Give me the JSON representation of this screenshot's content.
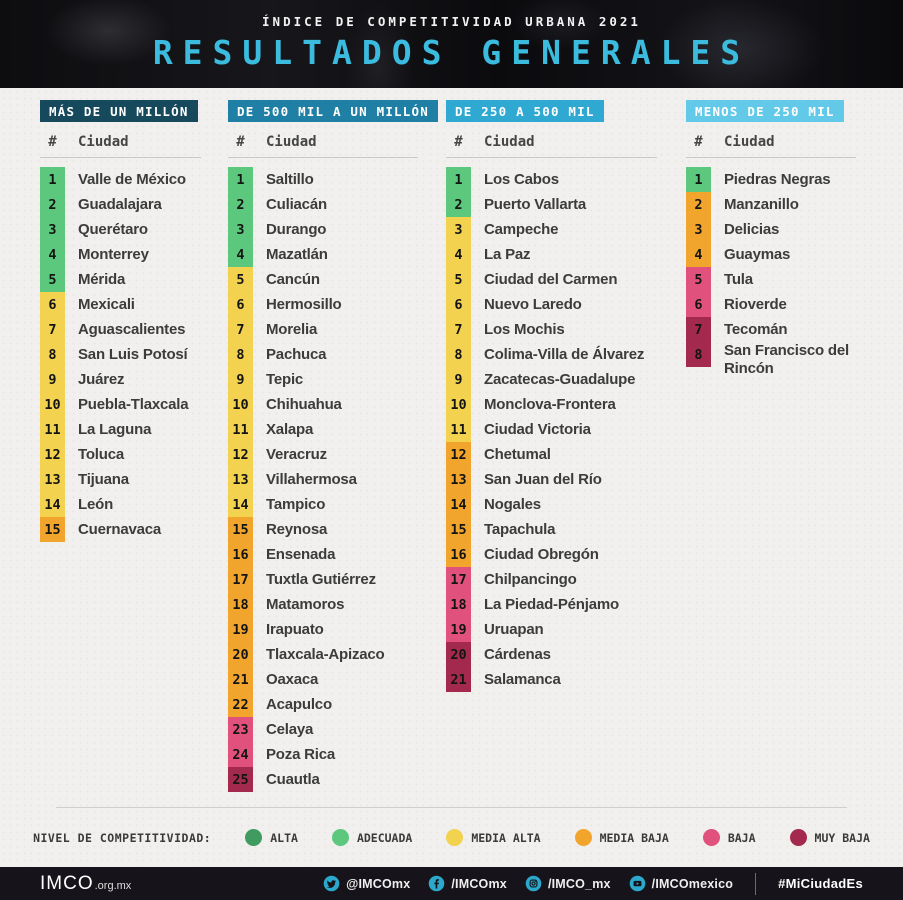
{
  "header": {
    "kicker": "ÍNDICE DE COMPETITIVIDAD URBANA 2021",
    "title": "RESULTADOS GENERALES"
  },
  "list_header": {
    "rank": "#",
    "city": "Ciudad"
  },
  "level_colors": {
    "alta": "#3f9b60",
    "adecuada": "#5bc87e",
    "media_alta": "#f2d24f",
    "media_baja": "#f2a52d",
    "baja": "#e0517e",
    "muy_baja": "#a32a4e"
  },
  "chart_data": {
    "type": "table",
    "title": "Índice de Competitividad Urbana 2021 — Resultados Generales",
    "groups": [
      {
        "label": "MÁS DE UN MILLÓN",
        "header_color": "#17495d",
        "rows": [
          {
            "rank": "1",
            "city": "Valle de México",
            "level": "adecuada"
          },
          {
            "rank": "2",
            "city": "Guadalajara",
            "level": "adecuada"
          },
          {
            "rank": "3",
            "city": "Querétaro",
            "level": "adecuada"
          },
          {
            "rank": "4",
            "city": "Monterrey",
            "level": "adecuada"
          },
          {
            "rank": "5",
            "city": "Mérida",
            "level": "adecuada"
          },
          {
            "rank": "6",
            "city": "Mexicali",
            "level": "media_alta"
          },
          {
            "rank": "7",
            "city": "Aguascalientes",
            "level": "media_alta"
          },
          {
            "rank": "8",
            "city": "San Luis Potosí",
            "level": "media_alta"
          },
          {
            "rank": "9",
            "city": "Juárez",
            "level": "media_alta"
          },
          {
            "rank": "10",
            "city": "Puebla-Tlaxcala",
            "level": "media_alta"
          },
          {
            "rank": "11",
            "city": "La Laguna",
            "level": "media_alta"
          },
          {
            "rank": "12",
            "city": "Toluca",
            "level": "media_alta"
          },
          {
            "rank": "13",
            "city": "Tijuana",
            "level": "media_alta"
          },
          {
            "rank": "14",
            "city": "León",
            "level": "media_alta"
          },
          {
            "rank": "15",
            "city": "Cuernavaca",
            "level": "media_baja"
          }
        ]
      },
      {
        "label": "DE 500 MIL A UN MILLÓN",
        "header_color": "#1f7fa4",
        "rows": [
          {
            "rank": "1",
            "city": "Saltillo",
            "level": "adecuada"
          },
          {
            "rank": "2",
            "city": "Culiacán",
            "level": "adecuada"
          },
          {
            "rank": "3",
            "city": "Durango",
            "level": "adecuada"
          },
          {
            "rank": "4",
            "city": "Mazatlán",
            "level": "adecuada"
          },
          {
            "rank": "5",
            "city": "Cancún",
            "level": "media_alta"
          },
          {
            "rank": "6",
            "city": "Hermosillo",
            "level": "media_alta"
          },
          {
            "rank": "7",
            "city": "Morelia",
            "level": "media_alta"
          },
          {
            "rank": "8",
            "city": "Pachuca",
            "level": "media_alta"
          },
          {
            "rank": "9",
            "city": "Tepic",
            "level": "media_alta"
          },
          {
            "rank": "10",
            "city": "Chihuahua",
            "level": "media_alta"
          },
          {
            "rank": "11",
            "city": "Xalapa",
            "level": "media_alta"
          },
          {
            "rank": "12",
            "city": "Veracruz",
            "level": "media_alta"
          },
          {
            "rank": "13",
            "city": "Villahermosa",
            "level": "media_alta"
          },
          {
            "rank": "14",
            "city": "Tampico",
            "level": "media_alta"
          },
          {
            "rank": "15",
            "city": "Reynosa",
            "level": "media_baja"
          },
          {
            "rank": "16",
            "city": "Ensenada",
            "level": "media_baja"
          },
          {
            "rank": "17",
            "city": "Tuxtla Gutiérrez",
            "level": "media_baja"
          },
          {
            "rank": "18",
            "city": "Matamoros",
            "level": "media_baja"
          },
          {
            "rank": "19",
            "city": "Irapuato",
            "level": "media_baja"
          },
          {
            "rank": "20",
            "city": "Tlaxcala-Apizaco",
            "level": "media_baja"
          },
          {
            "rank": "21",
            "city": "Oaxaca",
            "level": "media_baja"
          },
          {
            "rank": "22",
            "city": "Acapulco",
            "level": "media_baja"
          },
          {
            "rank": "23",
            "city": "Celaya",
            "level": "baja"
          },
          {
            "rank": "24",
            "city": "Poza Rica",
            "level": "baja"
          },
          {
            "rank": "25",
            "city": "Cuautla",
            "level": "muy_baja"
          }
        ]
      },
      {
        "label": "DE 250 A 500 MIL",
        "header_color": "#2fa9d2",
        "rows": [
          {
            "rank": "1",
            "city": "Los Cabos",
            "level": "adecuada"
          },
          {
            "rank": "2",
            "city": "Puerto Vallarta",
            "level": "adecuada"
          },
          {
            "rank": "3",
            "city": "Campeche",
            "level": "media_alta"
          },
          {
            "rank": "4",
            "city": "La Paz",
            "level": "media_alta"
          },
          {
            "rank": "5",
            "city": "Ciudad del Carmen",
            "level": "media_alta"
          },
          {
            "rank": "6",
            "city": "Nuevo Laredo",
            "level": "media_alta"
          },
          {
            "rank": "7",
            "city": "Los Mochis",
            "level": "media_alta"
          },
          {
            "rank": "8",
            "city": "Colima-Villa de Álvarez",
            "level": "media_alta"
          },
          {
            "rank": "9",
            "city": "Zacatecas-Guadalupe",
            "level": "media_alta"
          },
          {
            "rank": "10",
            "city": "Monclova-Frontera",
            "level": "media_alta"
          },
          {
            "rank": "11",
            "city": "Ciudad Victoria",
            "level": "media_alta"
          },
          {
            "rank": "12",
            "city": "Chetumal",
            "level": "media_baja"
          },
          {
            "rank": "13",
            "city": "San Juan del Río",
            "level": "media_baja"
          },
          {
            "rank": "14",
            "city": "Nogales",
            "level": "media_baja"
          },
          {
            "rank": "15",
            "city": "Tapachula",
            "level": "media_baja"
          },
          {
            "rank": "16",
            "city": "Ciudad Obregón",
            "level": "media_baja"
          },
          {
            "rank": "17",
            "city": "Chilpancingo",
            "level": "baja"
          },
          {
            "rank": "18",
            "city": "La Piedad-Pénjamo",
            "level": "baja"
          },
          {
            "rank": "19",
            "city": "Uruapan",
            "level": "baja"
          },
          {
            "rank": "20",
            "city": "Cárdenas",
            "level": "muy_baja"
          },
          {
            "rank": "21",
            "city": "Salamanca",
            "level": "muy_baja"
          }
        ]
      },
      {
        "label": "MENOS DE 250 MIL",
        "header_color": "#63c9e8",
        "rows": [
          {
            "rank": "1",
            "city": "Piedras Negras",
            "level": "adecuada"
          },
          {
            "rank": "2",
            "city": "Manzanillo",
            "level": "media_baja"
          },
          {
            "rank": "3",
            "city": "Delicias",
            "level": "media_baja"
          },
          {
            "rank": "4",
            "city": "Guaymas",
            "level": "media_baja"
          },
          {
            "rank": "5",
            "city": "Tula",
            "level": "baja"
          },
          {
            "rank": "6",
            "city": "Rioverde",
            "level": "baja"
          },
          {
            "rank": "7",
            "city": "Tecomán",
            "level": "muy_baja"
          },
          {
            "rank": "8",
            "city": "San Francisco del Rincón",
            "level": "muy_baja"
          }
        ]
      }
    ],
    "legend": {
      "label": "NIVEL DE COMPETITIVIDAD:",
      "items": [
        {
          "label": "ALTA",
          "level": "alta"
        },
        {
          "label": "ADECUADA",
          "level": "adecuada"
        },
        {
          "label": "MEDIA ALTA",
          "level": "media_alta"
        },
        {
          "label": "MEDIA BAJA",
          "level": "media_baja"
        },
        {
          "label": "BAJA",
          "level": "baja"
        },
        {
          "label": "MUY BAJA",
          "level": "muy_baja"
        }
      ]
    }
  },
  "footer": {
    "logo": "IMCO",
    "logo_suffix": ".org.mx",
    "social": [
      {
        "icon": "twitter-icon",
        "handle": "@IMCOmx"
      },
      {
        "icon": "facebook-icon",
        "handle": "/IMCOmx"
      },
      {
        "icon": "instagram-icon",
        "handle": "/IMCO_mx"
      },
      {
        "icon": "youtube-icon",
        "handle": "/IMCOmexico"
      }
    ],
    "hashtag": "#MiCiudadEs",
    "icon_color": "#2ba9cc"
  }
}
